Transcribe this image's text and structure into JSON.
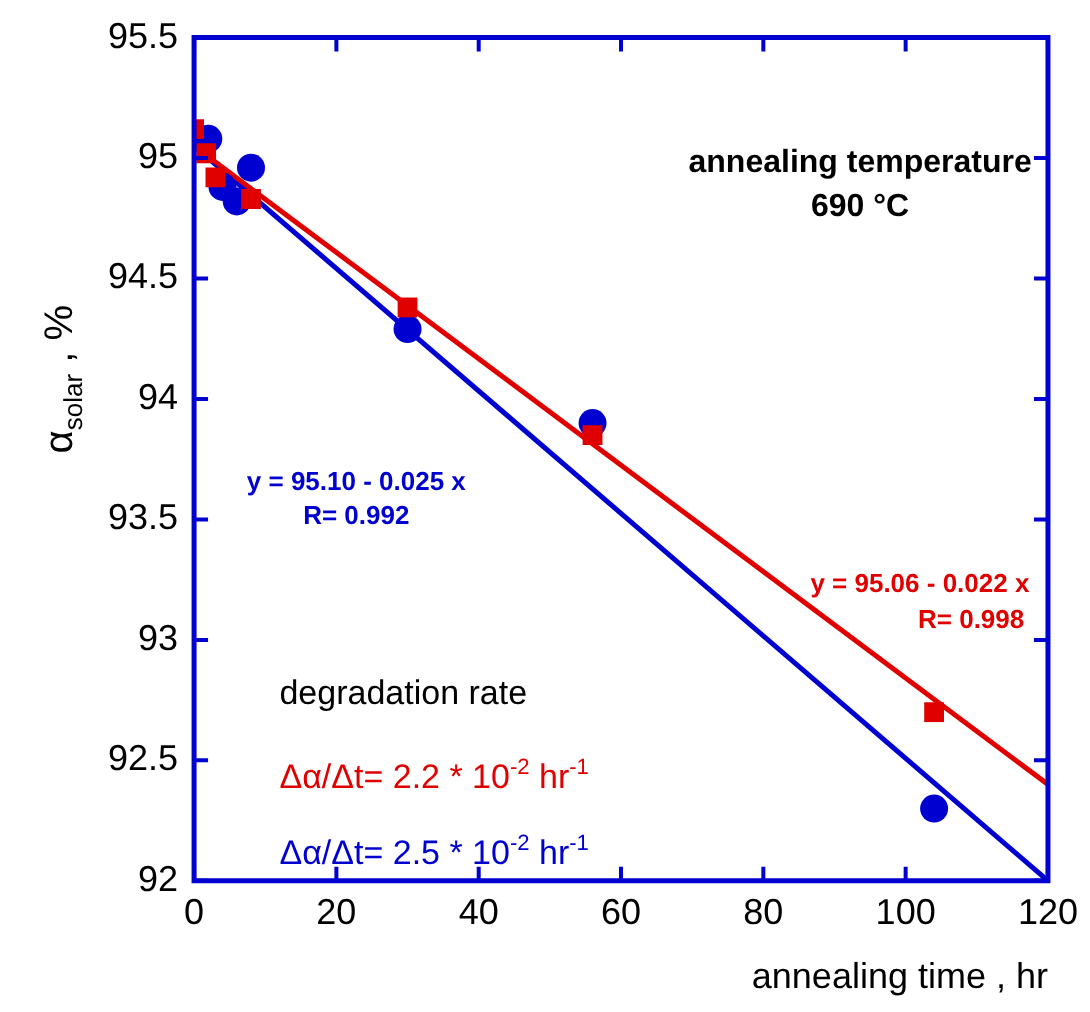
{
  "chart_data": {
    "type": "scatter",
    "xlabel": "annealing time , hr",
    "ylabel": "α$_{solar}$ , %",
    "xlim": [
      0,
      120
    ],
    "xticks": [
      0,
      20,
      40,
      60,
      80,
      100,
      120
    ],
    "ylim": [
      92,
      95.5
    ],
    "yticks": [
      92,
      92.5,
      93,
      93.5,
      94,
      94.5,
      95,
      95.5
    ],
    "grid": false,
    "legend": false,
    "series": [
      {
        "type": "scatter",
        "marker": "square",
        "color": "#e00000",
        "x": [
          0,
          1.7,
          3,
          8,
          30,
          56,
          104
        ],
        "values": [
          95.12,
          95.02,
          94.92,
          94.83,
          94.38,
          93.85,
          92.7
        ]
      },
      {
        "type": "scatter",
        "marker": "circle",
        "color": "#0000d0",
        "x": [
          2,
          4,
          6,
          8,
          30,
          56,
          104
        ],
        "values": [
          95.08,
          94.88,
          94.82,
          94.96,
          94.29,
          93.9,
          92.3
        ]
      },
      {
        "type": "line",
        "marker": "none",
        "color": "#e00000",
        "x": [
          0,
          120
        ],
        "values": [
          95.05,
          92.4
        ]
      },
      {
        "type": "line",
        "marker": "none",
        "color": "#0000d0",
        "x": [
          0,
          120
        ],
        "values": [
          95.05,
          92.0
        ]
      }
    ],
    "annotations": [
      "annealing temperature",
      "690 °C",
      "y = 95.10 - 0.025 x",
      "R= 0.992",
      "y = 95.06 - 0.022 x",
      "R= 0.998",
      "degradation rate",
      "Δα/Δt= 2.2 * 10$^{-2}$ hr$^{-1}$",
      "Δα/Δt= 2.5 * 10$^{-2}$ hr$^{-1}$"
    ]
  }
}
